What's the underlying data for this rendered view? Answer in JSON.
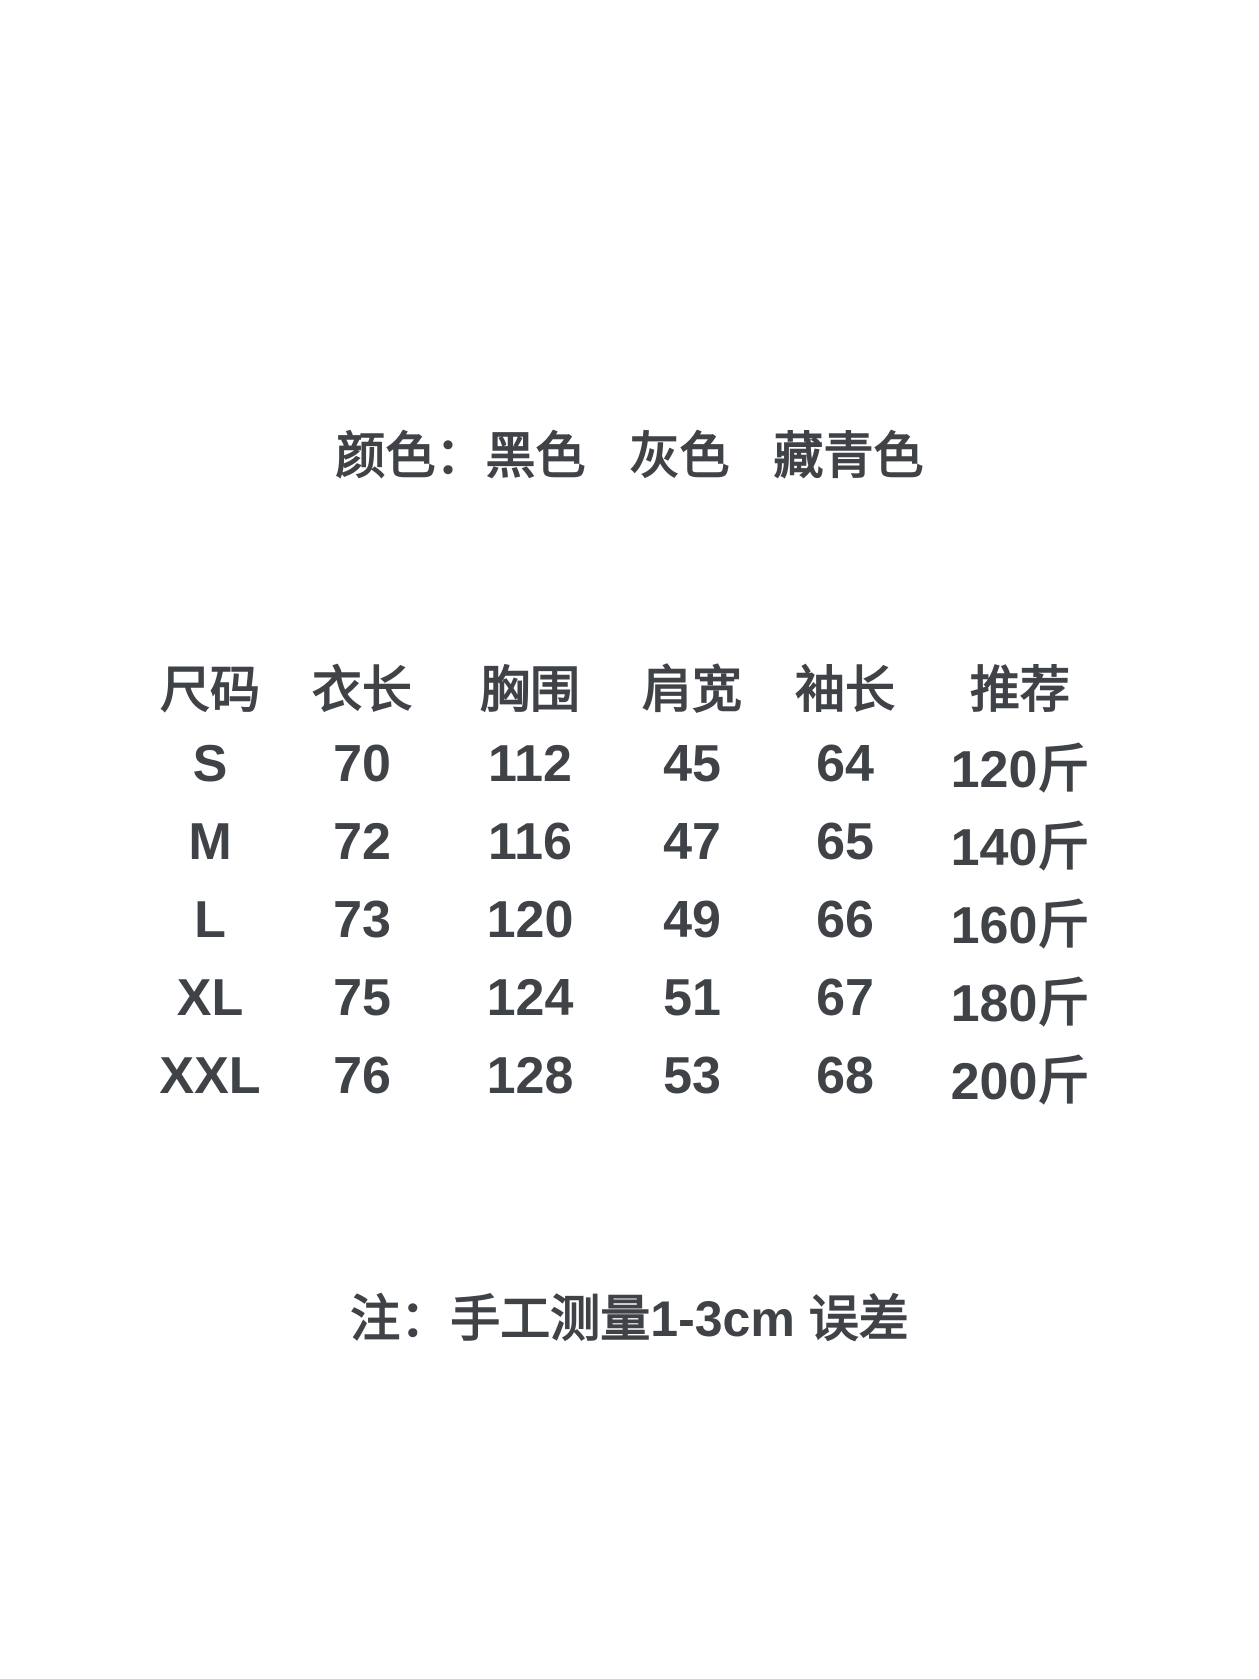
{
  "page": {
    "background_color": "#ffffff",
    "text_color": "#3f4246"
  },
  "colors_line": {
    "label": "颜色：",
    "items": [
      "黑色",
      "灰色",
      "藏青色"
    ]
  },
  "size_table": {
    "headers": [
      "尺码",
      "衣长",
      "胸围",
      "肩宽",
      "袖长",
      "推荐"
    ],
    "rows": [
      [
        "S",
        "70",
        "112",
        "45",
        "64",
        "120斤"
      ],
      [
        "M",
        "72",
        "116",
        "47",
        "65",
        "140斤"
      ],
      [
        "L",
        "73",
        "120",
        "49",
        "66",
        "160斤"
      ],
      [
        "XL",
        "75",
        "124",
        "51",
        "67",
        "180斤"
      ],
      [
        "XXL",
        "76",
        "128",
        "53",
        "68",
        "200斤"
      ]
    ]
  },
  "note": "注：手工测量1-3cm 误差",
  "chart_data": {
    "type": "table",
    "title": "颜色：黑色 灰色 藏青色",
    "columns": [
      "尺码",
      "衣长",
      "胸围",
      "肩宽",
      "袖长",
      "推荐"
    ],
    "rows": [
      {
        "尺码": "S",
        "衣长": 70,
        "胸围": 112,
        "肩宽": 45,
        "袖长": 64,
        "推荐": "120斤"
      },
      {
        "尺码": "M",
        "衣长": 72,
        "胸围": 116,
        "肩宽": 47,
        "袖长": 65,
        "推荐": "140斤"
      },
      {
        "尺码": "L",
        "衣长": 73,
        "胸围": 120,
        "肩宽": 49,
        "袖长": 66,
        "推荐": "160斤"
      },
      {
        "尺码": "XL",
        "衣长": 75,
        "胸围": 124,
        "肩宽": 51,
        "袖长": 67,
        "推荐": "180斤"
      },
      {
        "尺码": "XXL",
        "衣长": 76,
        "胸围": 128,
        "肩宽": 53,
        "袖长": 68,
        "推荐": "200斤"
      }
    ],
    "annotations": [
      "注：手工测量1-3cm 误差"
    ],
    "colors_listed": [
      "黑色",
      "灰色",
      "藏青色"
    ]
  }
}
